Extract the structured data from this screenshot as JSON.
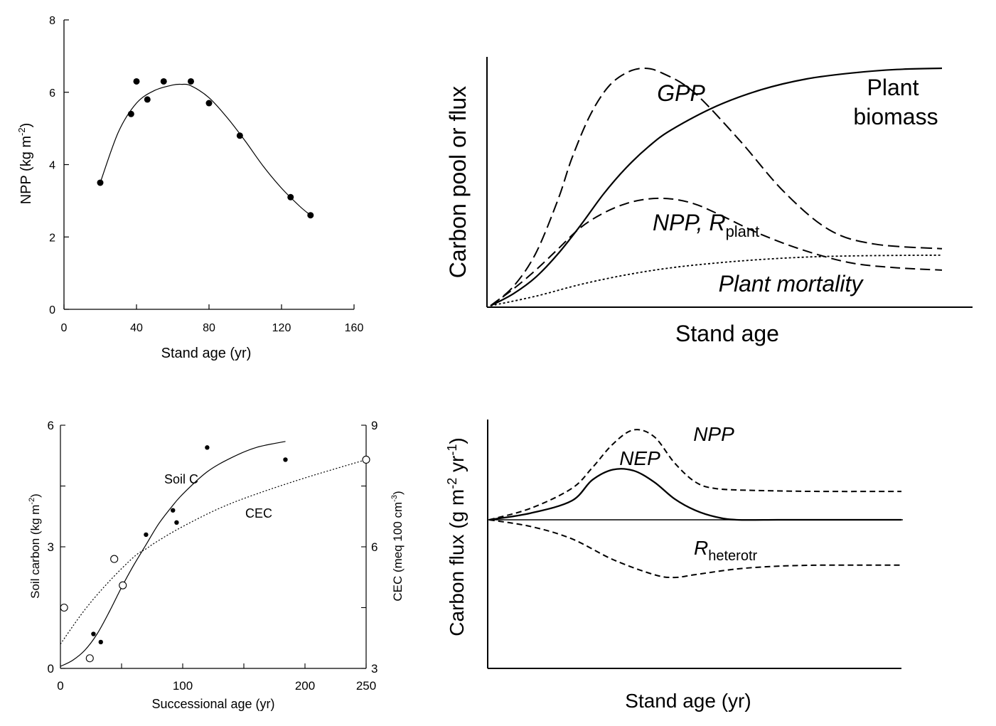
{
  "chart_data": [
    {
      "type": "scatter",
      "xlabel": "Stand age (yr)",
      "ylabel_main": "NPP (kg m",
      "ylabel_sup": "-2",
      "ylabel_close": ")",
      "xlim": [
        0,
        160
      ],
      "ylim": [
        0,
        8
      ],
      "xticks": [
        "0",
        "40",
        "80",
        "120",
        "160"
      ],
      "yticks": [
        "0",
        "2",
        "4",
        "6",
        "8"
      ],
      "series": [
        {
          "x": [
            20,
            37,
            40,
            46,
            55,
            70,
            80,
            97,
            125,
            136
          ],
          "y": [
            3.5,
            5.4,
            6.3,
            5.8,
            6.3,
            6.3,
            5.7,
            4.8,
            3.1,
            2.6
          ]
        }
      ],
      "fit_curve": {
        "x": [
          20,
          30,
          40,
          50,
          60,
          65,
          70,
          80,
          90,
          100,
          110,
          120,
          130,
          136
        ],
        "y": [
          3.5,
          4.9,
          5.7,
          6.05,
          6.2,
          6.22,
          6.18,
          5.85,
          5.3,
          4.65,
          3.95,
          3.35,
          2.85,
          2.6
        ]
      }
    },
    {
      "type": "line",
      "xlabel": "Stand age",
      "ylabel": "Carbon pool or flux",
      "series": [
        {
          "name": "GPP",
          "x": [
            0,
            5,
            10,
            15,
            18,
            22,
            26,
            30,
            34,
            38,
            45,
            55,
            65,
            75,
            85,
            100
          ],
          "y": [
            0,
            0.08,
            0.22,
            0.45,
            0.62,
            0.8,
            0.92,
            0.98,
            1.0,
            0.98,
            0.9,
            0.7,
            0.48,
            0.32,
            0.26,
            0.24
          ]
        },
        {
          "name_main": "NPP, R",
          "name_sub": "plant",
          "x": [
            0,
            5,
            10,
            15,
            20,
            25,
            30,
            35,
            40,
            45,
            50,
            60,
            70,
            80,
            90,
            100
          ],
          "y": [
            0,
            0.07,
            0.15,
            0.24,
            0.33,
            0.39,
            0.43,
            0.45,
            0.45,
            0.43,
            0.39,
            0.3,
            0.23,
            0.18,
            0.16,
            0.15
          ]
        },
        {
          "name_main": "Plant",
          "name_line2": "biomass",
          "x": [
            0,
            5,
            10,
            15,
            20,
            25,
            30,
            35,
            40,
            50,
            60,
            70,
            80,
            90,
            100
          ],
          "y": [
            0,
            0.05,
            0.12,
            0.22,
            0.34,
            0.47,
            0.58,
            0.67,
            0.74,
            0.84,
            0.91,
            0.955,
            0.98,
            0.995,
            1.0
          ]
        },
        {
          "name": "Plant mortality",
          "x": [
            0,
            10,
            20,
            30,
            40,
            50,
            60,
            70,
            80,
            90,
            100
          ],
          "y": [
            0,
            0.04,
            0.09,
            0.13,
            0.16,
            0.18,
            0.195,
            0.205,
            0.21,
            0.212,
            0.213
          ]
        }
      ]
    },
    {
      "type": "scatter",
      "xlabel": "Successional age (yr)",
      "ylabel_left_main": "Soil carbon (kg m",
      "ylabel_left_sup": "-2",
      "ylabel_left_close": ")",
      "ylabel_right_main": "CEC (meq 100 cm",
      "ylabel_right_sup": "-3",
      "ylabel_right_close": ")",
      "xlim": [
        0,
        250
      ],
      "ylim_left": [
        0,
        6
      ],
      "ylim_right": [
        3,
        9
      ],
      "xticks": [
        "0",
        "100",
        "200",
        "250"
      ],
      "yticks_left": [
        "0",
        "3",
        "6"
      ],
      "yticks_right": [
        "3",
        "6",
        "9"
      ],
      "soil_c_label": "Soil C",
      "cec_label": "CEC",
      "soil_c_points": {
        "x": [
          27,
          33,
          70,
          92,
          95,
          120,
          184
        ],
        "y": [
          0.85,
          0.65,
          3.3,
          3.9,
          3.6,
          5.45,
          5.15
        ]
      },
      "cec_points": {
        "x": [
          3,
          24,
          44,
          51,
          250
        ],
        "y": [
          4.5,
          3.25,
          5.7,
          5.05,
          8.15
        ]
      },
      "soil_c_curve": {
        "x": [
          0,
          10,
          20,
          30,
          40,
          50,
          60,
          70,
          80,
          90,
          100,
          120,
          140,
          160,
          184
        ],
        "y": [
          0.05,
          0.2,
          0.45,
          0.85,
          1.4,
          2.0,
          2.55,
          3.05,
          3.55,
          3.95,
          4.3,
          4.85,
          5.2,
          5.45,
          5.6
        ]
      },
      "cec_curve": {
        "x": [
          0,
          20,
          40,
          60,
          70,
          80,
          100,
          130,
          160,
          200,
          250
        ],
        "y": [
          3.6,
          4.45,
          5.15,
          5.75,
          5.95,
          6.15,
          6.5,
          6.95,
          7.3,
          7.7,
          8.15
        ]
      }
    },
    {
      "type": "line",
      "xlabel": "Stand age (yr)",
      "ylabel_main": "Carbon flux (g m",
      "ylabel_sup1": "-2",
      "ylabel_mid": " yr",
      "ylabel_sup2": "-1",
      "ylabel_close": ")",
      "series": [
        {
          "name": "NPP",
          "x": [
            0,
            10,
            20,
            25,
            30,
            35,
            40,
            45,
            50,
            55,
            65,
            80,
            100
          ],
          "y": [
            0,
            0.12,
            0.33,
            0.55,
            0.8,
            0.95,
            0.88,
            0.6,
            0.4,
            0.33,
            0.31,
            0.3,
            0.3
          ]
        },
        {
          "name": "NEP",
          "x": [
            0,
            10,
            20,
            25,
            30,
            35,
            40,
            45,
            50,
            55,
            60,
            70,
            80,
            100
          ],
          "y": [
            0,
            0.07,
            0.2,
            0.42,
            0.53,
            0.52,
            0.4,
            0.22,
            0.1,
            0.03,
            0.0,
            0.0,
            0.0,
            0.0
          ]
        },
        {
          "name_main": "R",
          "name_sub": "heterotr",
          "x": [
            0,
            10,
            20,
            30,
            40,
            45,
            50,
            60,
            70,
            80,
            90,
            100
          ],
          "y": [
            0,
            -0.07,
            -0.2,
            -0.42,
            -0.58,
            -0.61,
            -0.58,
            -0.52,
            -0.49,
            -0.48,
            -0.48,
            -0.48
          ]
        }
      ]
    }
  ]
}
